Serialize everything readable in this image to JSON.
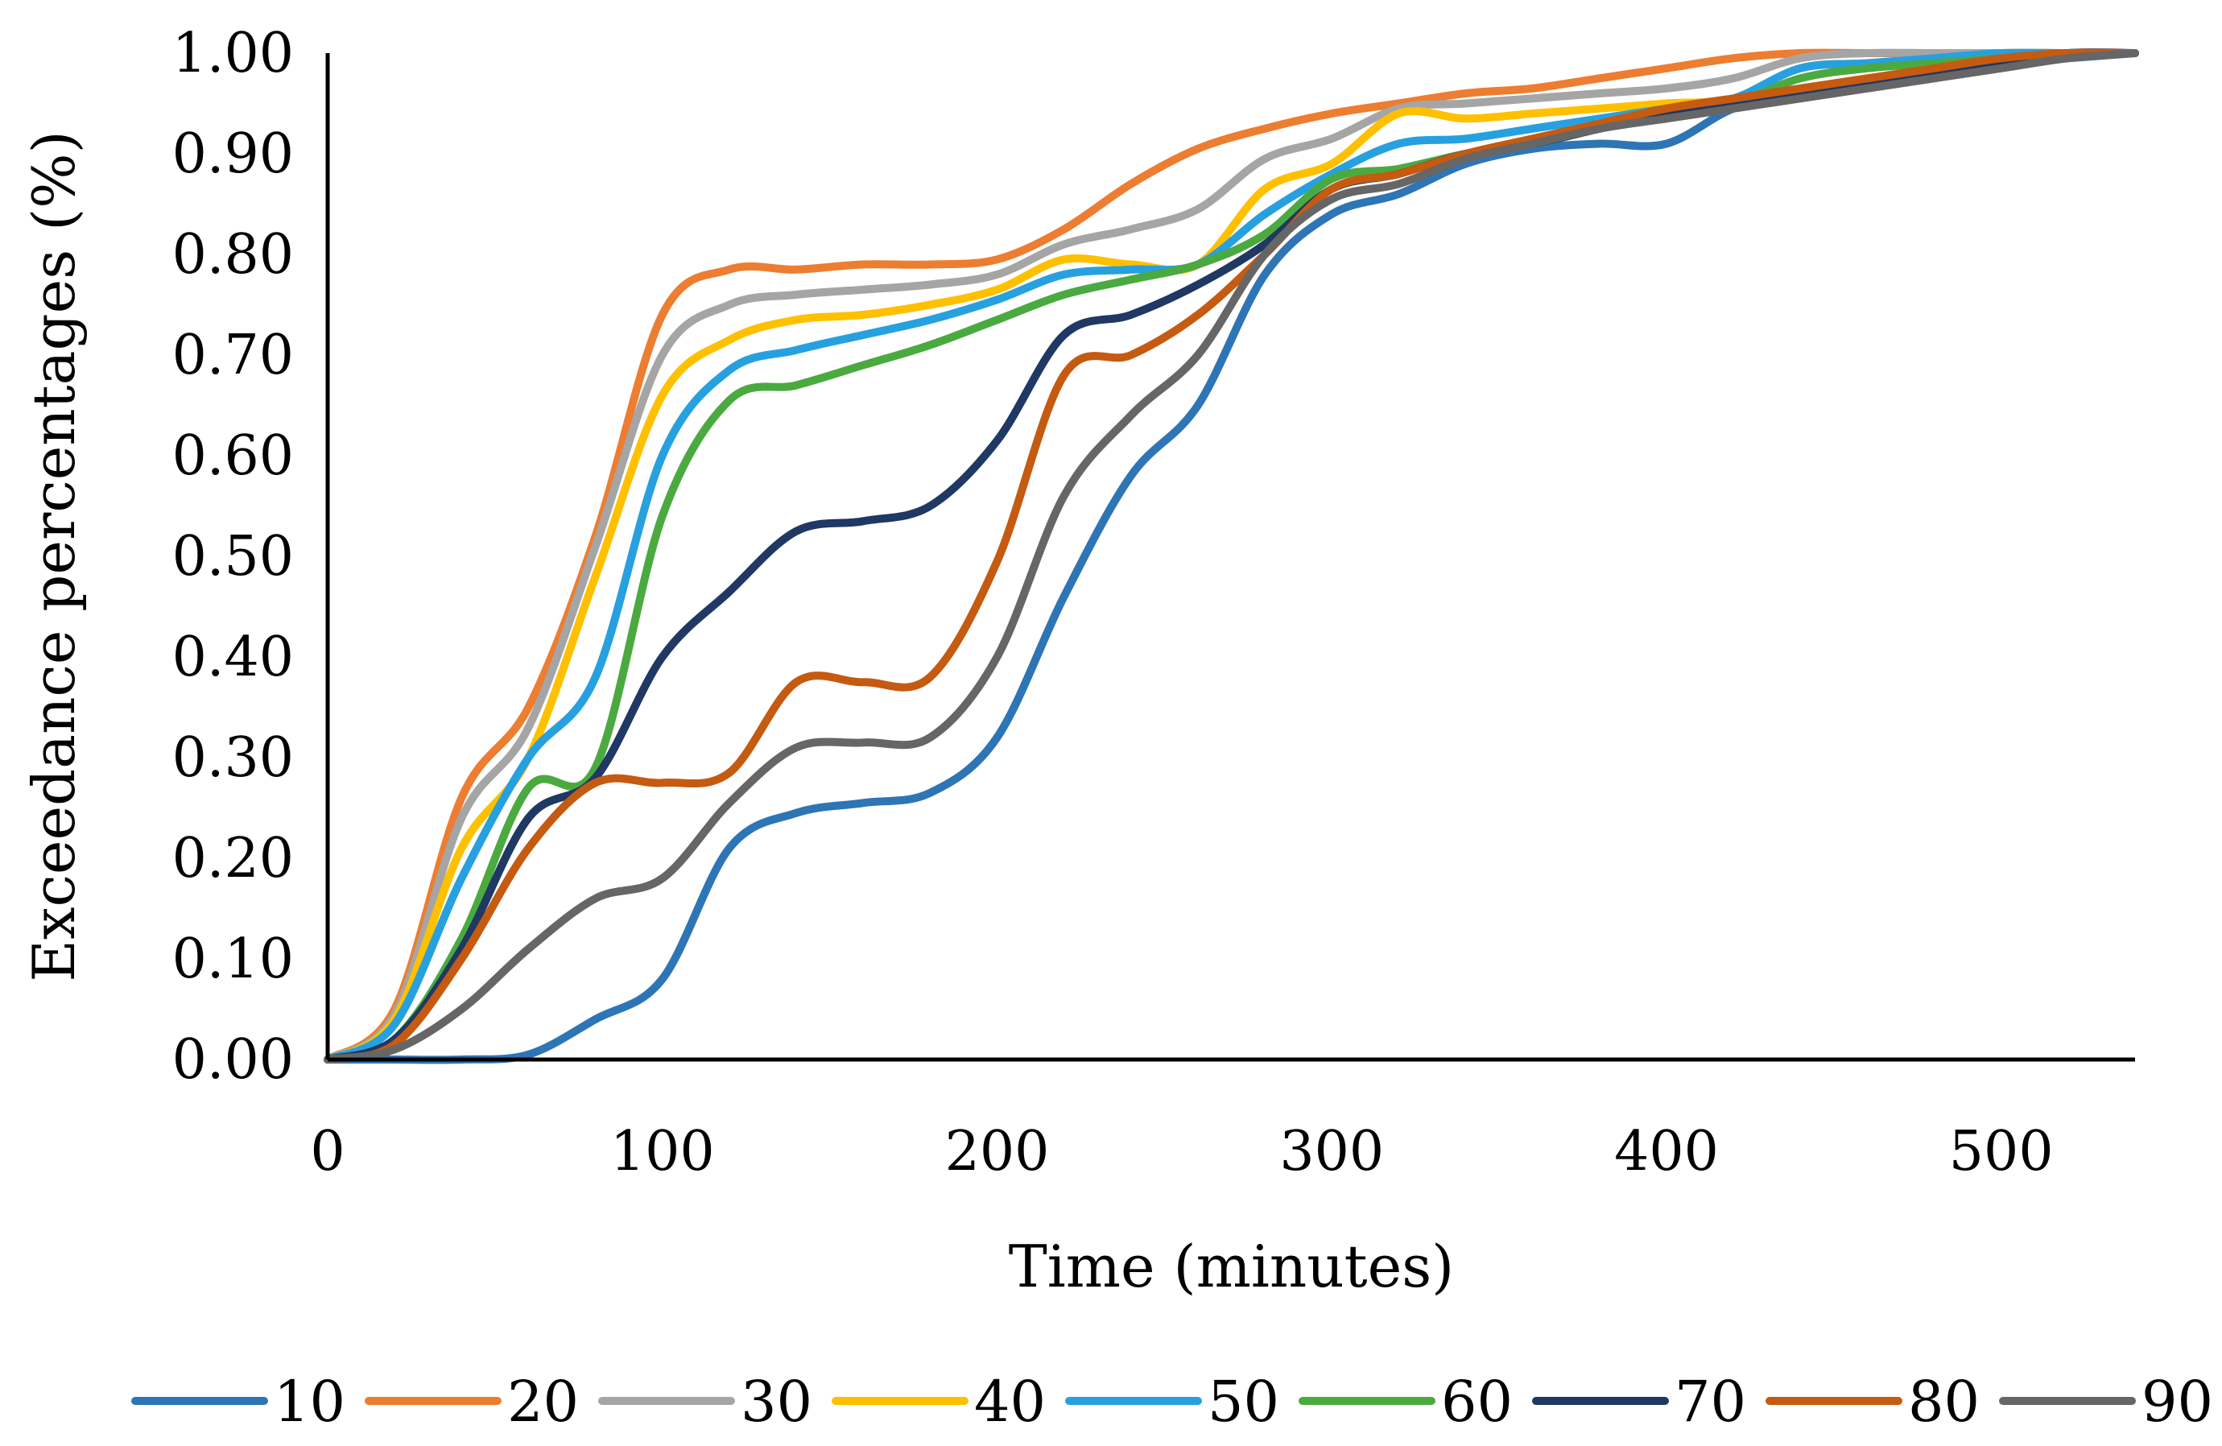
{
  "chart_data": {
    "type": "line",
    "title": "",
    "xlabel": "Time (minutes)",
    "ylabel": "Exceedance percentages  (%)",
    "xlim": [
      0,
      540
    ],
    "ylim": [
      0,
      1
    ],
    "xticks": [
      0,
      100,
      200,
      300,
      400,
      500
    ],
    "yticks": [
      0,
      0.1,
      0.2,
      0.3,
      0.4,
      0.5,
      0.6,
      0.7,
      0.8,
      0.9,
      1.0
    ],
    "ytick_labels": [
      "0.00",
      "0.10",
      "0.20",
      "0.30",
      "0.40",
      "0.50",
      "0.60",
      "0.70",
      "0.80",
      "0.90",
      "1.00"
    ],
    "xtick_labels": [
      "0",
      "100",
      "200",
      "300",
      "400",
      "500"
    ],
    "grid": false,
    "legend_position": "bottom",
    "x": [
      0,
      20,
      40,
      60,
      80,
      100,
      120,
      140,
      160,
      180,
      200,
      220,
      240,
      260,
      280,
      300,
      320,
      340,
      360,
      380,
      400,
      420,
      440,
      460,
      480,
      500,
      520,
      540
    ],
    "series": [
      {
        "name": "10",
        "color": "#2E75B6",
        "values": [
          0,
          0,
          0,
          0.005,
          0.04,
          0.08,
          0.21,
          0.245,
          0.255,
          0.265,
          0.32,
          0.46,
          0.58,
          0.65,
          0.78,
          0.84,
          0.86,
          0.89,
          0.905,
          0.91,
          0.91,
          0.945,
          0.96,
          0.97,
          0.98,
          0.99,
          0.995,
          1.0
        ]
      },
      {
        "name": "20",
        "color": "#ED7D31",
        "values": [
          0,
          0.05,
          0.26,
          0.35,
          0.52,
          0.74,
          0.785,
          0.785,
          0.79,
          0.79,
          0.795,
          0.825,
          0.87,
          0.905,
          0.925,
          0.94,
          0.95,
          0.96,
          0.965,
          0.975,
          0.985,
          0.995,
          1.0,
          1.0,
          1.0,
          1.0,
          1.0,
          1.0
        ]
      },
      {
        "name": "30",
        "color": "#A5A5A5",
        "values": [
          0,
          0.045,
          0.24,
          0.33,
          0.51,
          0.7,
          0.75,
          0.76,
          0.765,
          0.77,
          0.78,
          0.81,
          0.825,
          0.845,
          0.895,
          0.915,
          0.945,
          0.95,
          0.955,
          0.96,
          0.965,
          0.975,
          0.995,
          1.0,
          1.0,
          1.0,
          1.0,
          1.0
        ]
      },
      {
        "name": "40",
        "color": "#FFC000",
        "values": [
          0,
          0.04,
          0.21,
          0.3,
          0.48,
          0.66,
          0.715,
          0.735,
          0.74,
          0.75,
          0.765,
          0.795,
          0.79,
          0.79,
          0.865,
          0.89,
          0.94,
          0.935,
          0.94,
          0.945,
          0.95,
          0.955,
          0.985,
          0.99,
          0.995,
          1.0,
          1.0,
          1.0
        ]
      },
      {
        "name": "50",
        "color": "#27A0E0",
        "values": [
          0,
          0.035,
          0.18,
          0.3,
          0.38,
          0.6,
          0.685,
          0.705,
          0.72,
          0.735,
          0.755,
          0.78,
          0.785,
          0.79,
          0.84,
          0.88,
          0.91,
          0.915,
          0.925,
          0.935,
          0.945,
          0.955,
          0.985,
          0.99,
          0.995,
          1.0,
          1.0,
          1.0
        ]
      },
      {
        "name": "60",
        "color": "#4BAA3F",
        "values": [
          0,
          0.02,
          0.12,
          0.27,
          0.29,
          0.54,
          0.655,
          0.67,
          0.69,
          0.71,
          0.735,
          0.76,
          0.775,
          0.79,
          0.82,
          0.875,
          0.885,
          0.9,
          0.91,
          0.925,
          0.94,
          0.95,
          0.975,
          0.985,
          0.99,
          0.995,
          1.0,
          1.0
        ]
      },
      {
        "name": "70",
        "color": "#1F3864",
        "values": [
          0,
          0.02,
          0.11,
          0.24,
          0.28,
          0.4,
          0.465,
          0.525,
          0.535,
          0.55,
          0.615,
          0.72,
          0.74,
          0.77,
          0.81,
          0.865,
          0.88,
          0.9,
          0.91,
          0.925,
          0.94,
          0.95,
          0.96,
          0.97,
          0.98,
          0.99,
          1.0,
          1.0
        ]
      },
      {
        "name": "80",
        "color": "#C55A11",
        "values": [
          0,
          0.015,
          0.1,
          0.21,
          0.275,
          0.275,
          0.285,
          0.375,
          0.375,
          0.38,
          0.495,
          0.68,
          0.7,
          0.74,
          0.8,
          0.865,
          0.88,
          0.9,
          0.915,
          0.93,
          0.945,
          0.955,
          0.965,
          0.975,
          0.985,
          0.995,
          1.0,
          1.0
        ]
      },
      {
        "name": "90",
        "color": "#666666",
        "values": [
          0,
          0.01,
          0.05,
          0.11,
          0.16,
          0.18,
          0.255,
          0.31,
          0.315,
          0.32,
          0.4,
          0.56,
          0.64,
          0.7,
          0.8,
          0.855,
          0.87,
          0.895,
          0.91,
          0.925,
          0.935,
          0.945,
          0.955,
          0.965,
          0.975,
          0.985,
          0.995,
          1.0
        ]
      }
    ]
  }
}
